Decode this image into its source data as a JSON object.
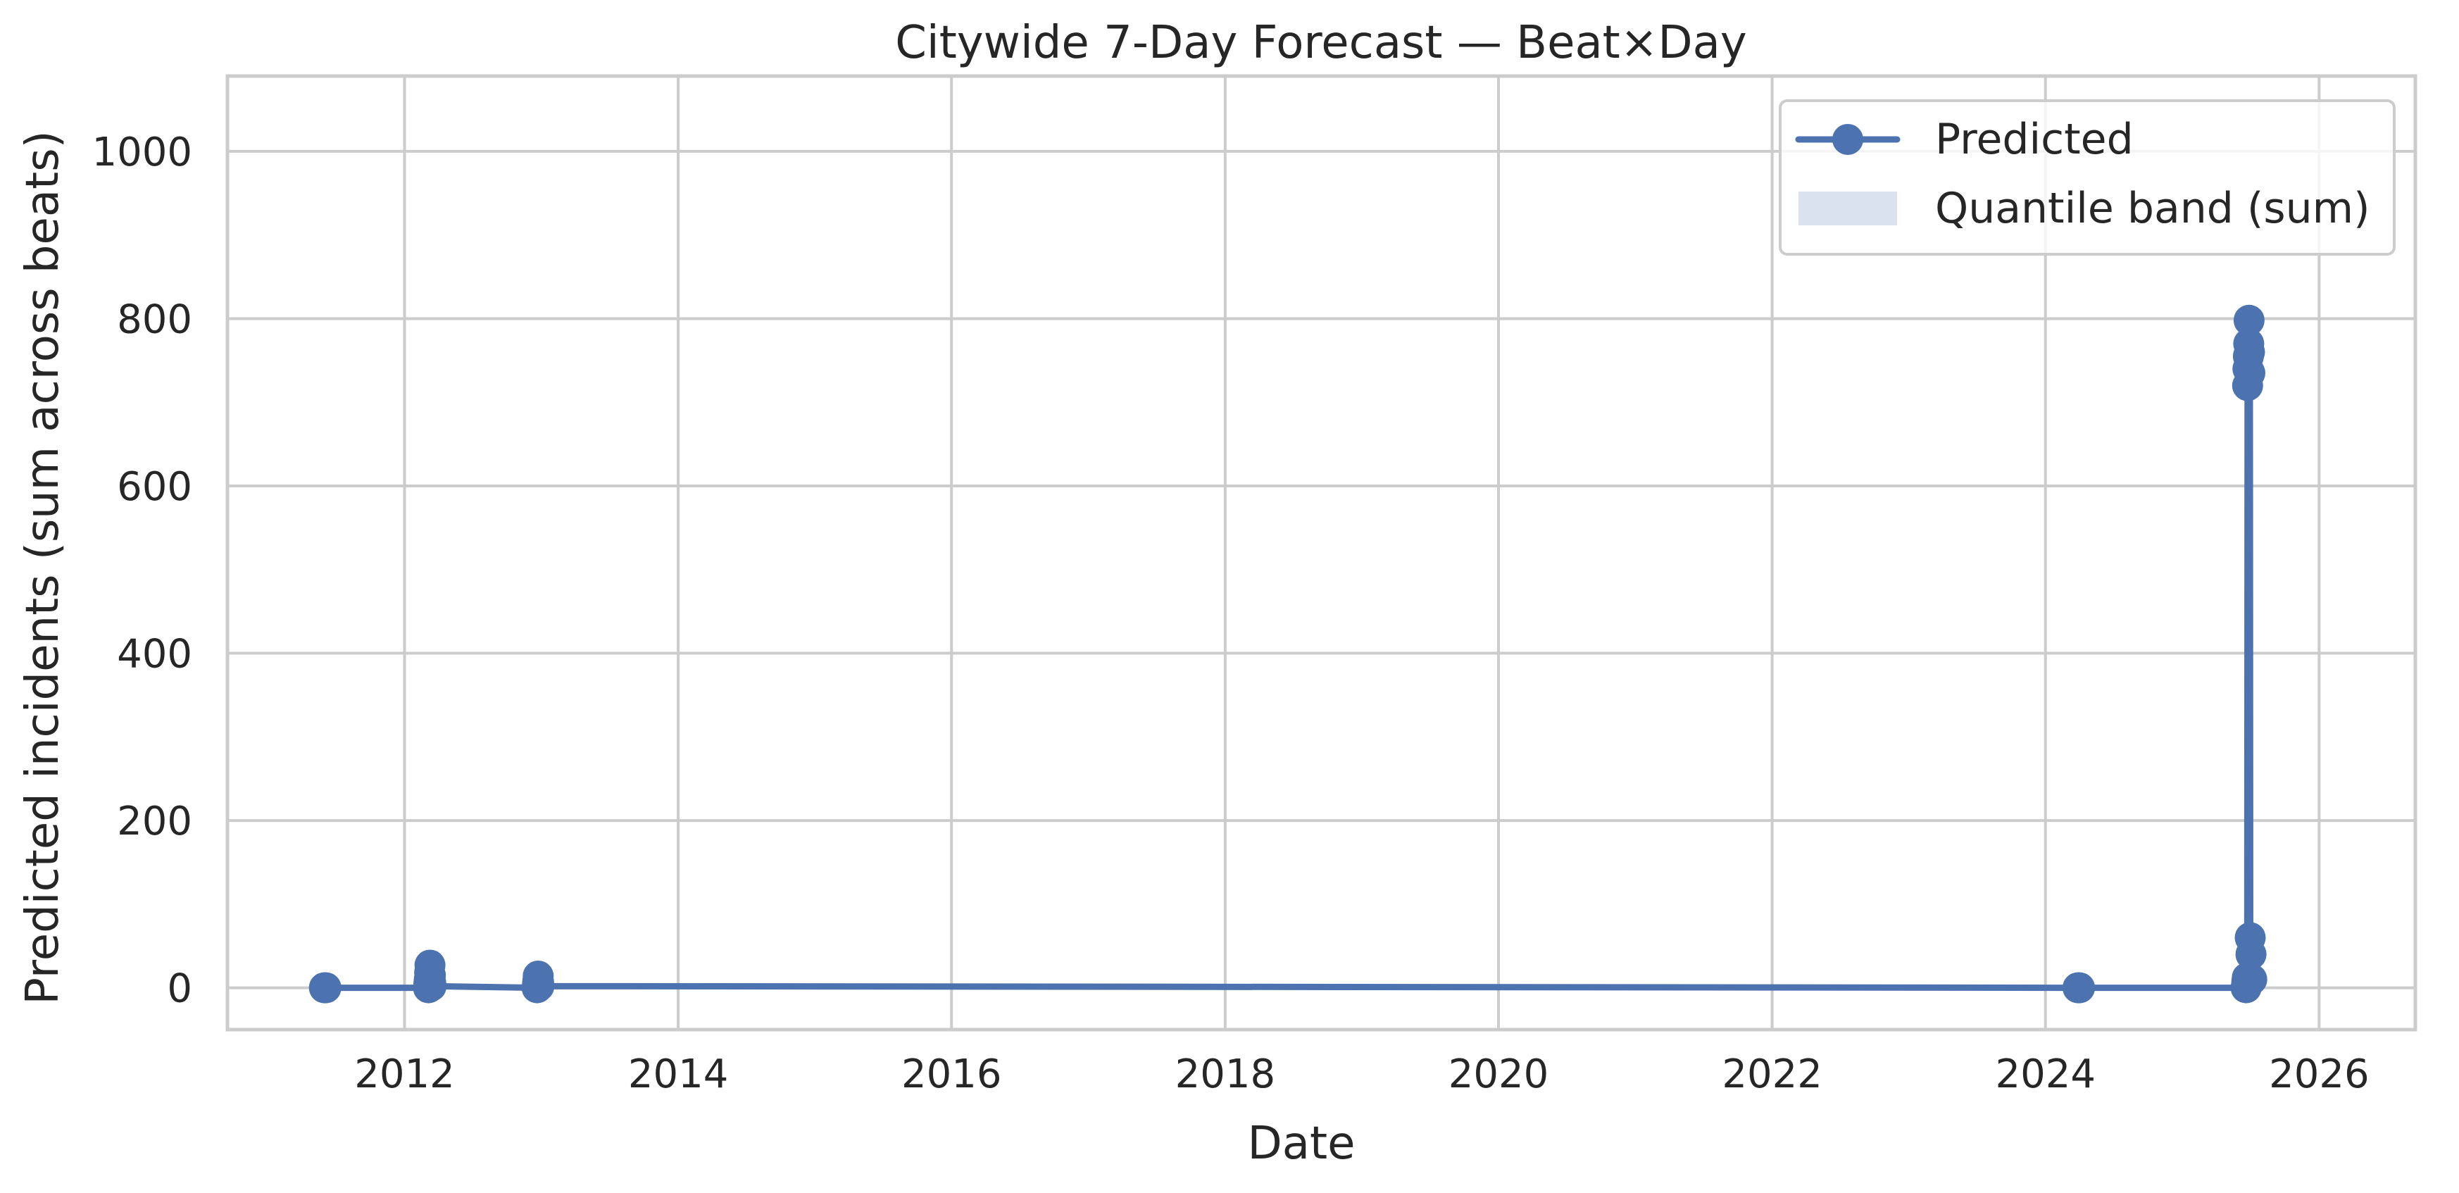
{
  "chart_data": {
    "type": "line",
    "title": "Citywide 7-Day Forecast — Beat×Day",
    "xlabel": "Date",
    "ylabel": "Predicted incidents (sum across beats)",
    "x_axis": "date",
    "xlim": [
      "2010-09-15",
      "2026-09-15"
    ],
    "ylim": [
      -50,
      1090
    ],
    "x_ticks": [
      "2012",
      "2014",
      "2016",
      "2018",
      "2020",
      "2022",
      "2024",
      "2026"
    ],
    "y_ticks": [
      0,
      200,
      400,
      600,
      800,
      1000
    ],
    "grid": true,
    "legend_position": "top-right",
    "legend": [
      "Predicted",
      "Quantile band (sum)"
    ],
    "colors": {
      "series": "#4c72b0",
      "band": "#dbe2ef",
      "grid": "#cccccc",
      "axes": "#cccccc",
      "text": "#262626"
    },
    "series": [
      {
        "name": "Predicted",
        "points": [
          {
            "x": "2011-06-01",
            "y": 0
          },
          {
            "x": "2011-06-03",
            "y": 0
          },
          {
            "x": "2011-06-05",
            "y": 0
          },
          {
            "x": "2012-03-05",
            "y": 0
          },
          {
            "x": "2012-03-06",
            "y": 5
          },
          {
            "x": "2012-03-07",
            "y": 10
          },
          {
            "x": "2012-03-08",
            "y": 18
          },
          {
            "x": "2012-03-09",
            "y": 27
          },
          {
            "x": "2012-03-10",
            "y": 15
          },
          {
            "x": "2012-03-11",
            "y": 6
          },
          {
            "x": "2012-03-12",
            "y": 2
          },
          {
            "x": "2012-12-20",
            "y": 0
          },
          {
            "x": "2012-12-21",
            "y": 4
          },
          {
            "x": "2012-12-22",
            "y": 8
          },
          {
            "x": "2012-12-23",
            "y": 14
          },
          {
            "x": "2012-12-24",
            "y": 7
          },
          {
            "x": "2012-12-25",
            "y": 2
          },
          {
            "x": "2024-03-28",
            "y": 0
          },
          {
            "x": "2024-03-30",
            "y": 0
          },
          {
            "x": "2024-04-01",
            "y": 0
          },
          {
            "x": "2025-06-20",
            "y": 0
          },
          {
            "x": "2025-06-21",
            "y": 3
          },
          {
            "x": "2025-06-22",
            "y": 8
          },
          {
            "x": "2025-06-23",
            "y": 12
          },
          {
            "x": "2025-06-24",
            "y": 720
          },
          {
            "x": "2025-06-25",
            "y": 740
          },
          {
            "x": "2025-06-26",
            "y": 755
          },
          {
            "x": "2025-06-27",
            "y": 770
          },
          {
            "x": "2025-06-28",
            "y": 798
          },
          {
            "x": "2025-06-29",
            "y": 760
          },
          {
            "x": "2025-06-30",
            "y": 735
          },
          {
            "x": "2025-07-01",
            "y": 60
          },
          {
            "x": "2025-07-03",
            "y": 40
          },
          {
            "x": "2025-07-05",
            "y": 10
          }
        ]
      }
    ]
  }
}
